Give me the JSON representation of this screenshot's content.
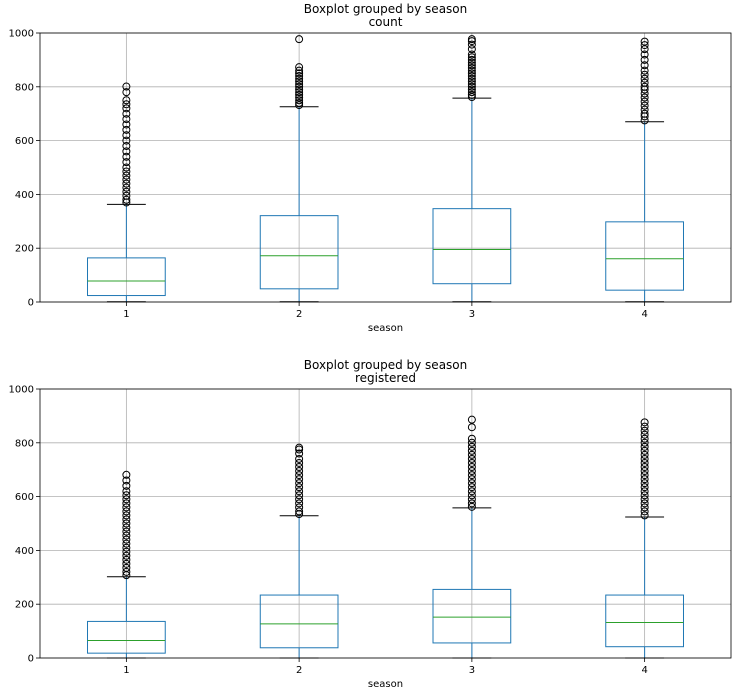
{
  "chart_data": [
    {
      "type": "boxplot",
      "title": "Boxplot grouped by season",
      "subtitle": "count",
      "xlabel": "season",
      "ylabel": "",
      "ylim": [
        0,
        1000
      ],
      "yticks": [
        0,
        200,
        400,
        600,
        800,
        1000
      ],
      "grid": true,
      "categories": [
        "1",
        "2",
        "3",
        "4"
      ],
      "boxes": [
        {
          "q1": 24,
          "median": 78,
          "q3": 164,
          "whisker_low": 1,
          "whisker_high": 363,
          "outliers": [
            370,
            380,
            395,
            410,
            425,
            440,
            455,
            470,
            485,
            500,
            520,
            540,
            560,
            580,
            600,
            620,
            640,
            660,
            680,
            700,
            720,
            735,
            750,
            780,
            801
          ]
        },
        {
          "q1": 49,
          "median": 172,
          "q3": 321,
          "whisker_low": 1,
          "whisker_high": 726,
          "outliers": [
            732,
            740,
            750,
            760,
            770,
            780,
            790,
            800,
            810,
            820,
            830,
            840,
            850,
            860,
            873,
            977
          ]
        },
        {
          "q1": 68,
          "median": 195,
          "q3": 347,
          "whisker_low": 1,
          "whisker_high": 758,
          "outliers": [
            762,
            770,
            780,
            790,
            800,
            810,
            820,
            830,
            840,
            850,
            860,
            870,
            880,
            890,
            900,
            910,
            920,
            940,
            957,
            970,
            977
          ]
        },
        {
          "q1": 44,
          "median": 161,
          "q3": 298,
          "whisker_low": 1,
          "whisker_high": 670,
          "outliers": [
            675,
            690,
            700,
            715,
            730,
            745,
            760,
            775,
            790,
            800,
            815,
            830,
            845,
            860,
            880,
            900,
            920,
            940,
            955,
            968
          ]
        }
      ]
    },
    {
      "type": "boxplot",
      "title": "Boxplot grouped by season",
      "subtitle": "registered",
      "xlabel": "season",
      "ylabel": "",
      "ylim": [
        0,
        1000
      ],
      "yticks": [
        0,
        200,
        400,
        600,
        800,
        1000
      ],
      "grid": true,
      "categories": [
        "1",
        "2",
        "3",
        "4"
      ],
      "boxes": [
        {
          "q1": 18,
          "median": 65,
          "q3": 136,
          "whisker_low": 0,
          "whisker_high": 302,
          "outliers": [
            308,
            320,
            335,
            350,
            365,
            380,
            395,
            410,
            425,
            440,
            455,
            470,
            485,
            500,
            515,
            530,
            545,
            560,
            575,
            590,
            605,
            620,
            640,
            660,
            681
          ]
        },
        {
          "q1": 38,
          "median": 127,
          "q3": 234,
          "whisker_low": 0,
          "whisker_high": 529,
          "outliers": [
            535,
            545,
            560,
            575,
            590,
            605,
            620,
            635,
            650,
            665,
            680,
            695,
            710,
            725,
            740,
            760,
            775,
            782
          ]
        },
        {
          "q1": 56,
          "median": 152,
          "q3": 255,
          "whisker_low": 0,
          "whisker_high": 558,
          "outliers": [
            562,
            575,
            590,
            605,
            620,
            635,
            650,
            665,
            680,
            695,
            710,
            725,
            740,
            755,
            770,
            785,
            800,
            815,
            858,
            886
          ]
        },
        {
          "q1": 42,
          "median": 132,
          "q3": 234,
          "whisker_low": 0,
          "whisker_high": 524,
          "outliers": [
            530,
            545,
            560,
            575,
            590,
            605,
            620,
            635,
            650,
            665,
            680,
            695,
            710,
            725,
            740,
            755,
            770,
            785,
            800,
            815,
            830,
            845,
            860,
            876
          ]
        }
      ]
    }
  ]
}
